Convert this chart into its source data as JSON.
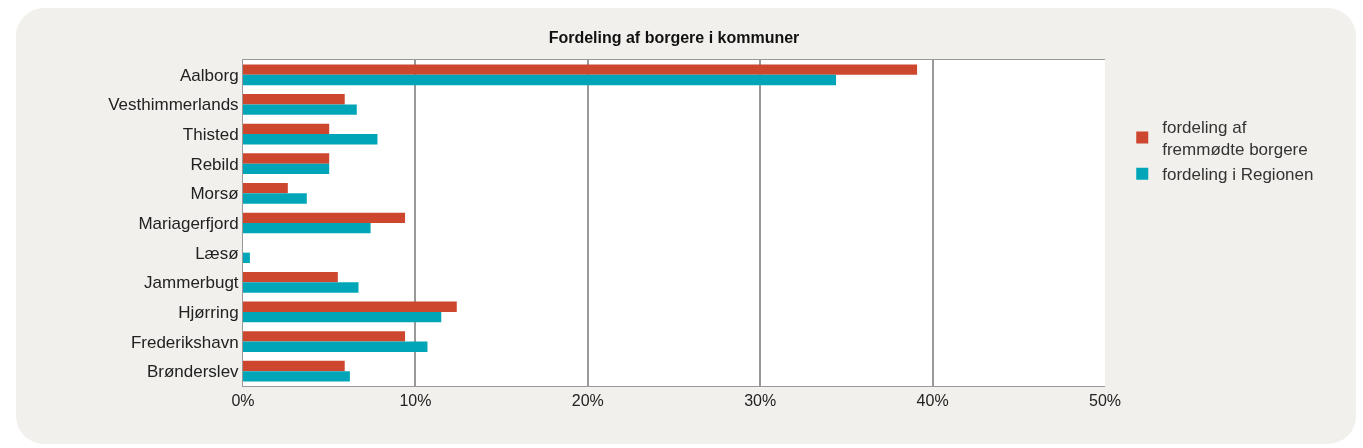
{
  "chart_data": {
    "type": "bar",
    "orientation": "horizontal",
    "title": "Fordeling af borgere i kommuner",
    "categories": [
      "Aalborg",
      "Vesthimmerlands",
      "Thisted",
      "Rebild",
      "Morsø",
      "Mariagerfjord",
      "Læsø",
      "Jammerbugt",
      "Hjørring",
      "Frederikshavn",
      "Brønderslev"
    ],
    "series": [
      {
        "name": "fordeling af fremmødte borgere",
        "color": "#cc472e",
        "values": [
          39.1,
          5.9,
          5.0,
          5.0,
          2.6,
          9.4,
          0,
          5.5,
          12.4,
          9.4,
          5.9
        ]
      },
      {
        "name": "fordeling i Regionen",
        "color": "#00a6b8",
        "values": [
          34.4,
          6.6,
          7.8,
          5.0,
          3.7,
          7.4,
          0.4,
          6.7,
          11.5,
          10.7,
          6.2
        ]
      }
    ],
    "xlim": [
      0,
      50
    ],
    "xticks": [
      {
        "value": 0,
        "label": "0%"
      },
      {
        "value": 10,
        "label": "10%"
      },
      {
        "value": 20,
        "label": "20%"
      },
      {
        "value": 30,
        "label": "30%"
      },
      {
        "value": 40,
        "label": "40%"
      },
      {
        "value": 50,
        "label": "50%"
      }
    ],
    "grid": "x",
    "legend": "right"
  }
}
